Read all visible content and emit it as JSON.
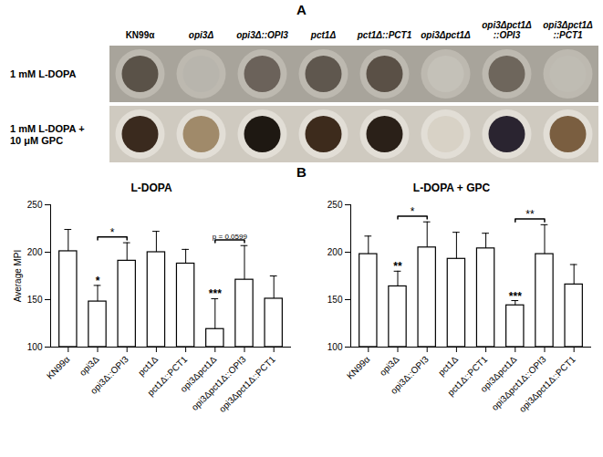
{
  "panel_a": {
    "label": "A",
    "strains": [
      "KN99α",
      "opi3Δ",
      "opi3Δ::OPI3",
      "pct1Δ",
      "pct1Δ::PCT1",
      "opi3Δpct1Δ",
      "opi3Δpct1Δ::OPI3",
      "opi3Δpct1Δ::PCT1"
    ],
    "rows": [
      {
        "label": "1 mM L-DOPA",
        "colors": [
          "#5a5248",
          "#b8b5ad",
          "#6b625a",
          "#5f574e",
          "#5a5046",
          "#c4c1b8",
          "#6e665c",
          "#bfbcb3"
        ]
      },
      {
        "label": "1 mM L-DOPA + 10 μM GPC",
        "colors": [
          "#3a2a1e",
          "#a08a6a",
          "#1e1812",
          "#3d2b1c",
          "#2a2018",
          "#d8d2c6",
          "#2a2430",
          "#7a5e40"
        ]
      }
    ]
  },
  "panel_b": {
    "label": "B"
  },
  "chart_data": [
    {
      "type": "bar",
      "title": "L-DOPA",
      "categories": [
        "KN99α",
        "opi3Δ",
        "opi3Δ::OPI3",
        "pct1Δ",
        "pct1Δ::PCT1",
        "opi3Δpct1Δ",
        "opi3Δpct1Δ::OPI3",
        "opi3Δpct1Δ::PCT1"
      ],
      "values": [
        201,
        148,
        191,
        200,
        188,
        119,
        171,
        151
      ],
      "errors": [
        23,
        17,
        19,
        22,
        15,
        32,
        36,
        24
      ],
      "color": "#ffffff",
      "ylabel": "Average MPI",
      "ylim": [
        100,
        250
      ],
      "yticks": [
        100,
        150,
        200,
        250
      ],
      "significance": [
        {
          "index": 1,
          "text": "*"
        },
        {
          "index": 5,
          "text": "***"
        }
      ],
      "brackets": [
        {
          "from": 1,
          "to": 2,
          "y": 216,
          "text": "*"
        },
        {
          "from": 5,
          "to": 6,
          "y": 213,
          "text": "p = 0.0599"
        }
      ]
    },
    {
      "type": "bar",
      "title": "L-DOPA + GPC",
      "categories": [
        "KN99α",
        "opi3Δ",
        "opi3Δ::OPI3",
        "pct1Δ",
        "pct1Δ::PCT1",
        "opi3Δpct1Δ",
        "opi3Δpct1Δ::OPI3",
        "opi3Δpct1Δ::PCT1"
      ],
      "values": [
        198,
        164,
        205,
        193,
        204,
        144,
        198,
        166
      ],
      "errors": [
        19,
        16,
        27,
        28,
        16,
        5,
        31,
        21
      ],
      "color": "#ffffff",
      "ylim": [
        100,
        250
      ],
      "yticks": [
        100,
        150,
        200,
        250
      ],
      "significance": [
        {
          "index": 1,
          "text": "**"
        },
        {
          "index": 5,
          "text": "***"
        }
      ],
      "brackets": [
        {
          "from": 1,
          "to": 2,
          "y": 238,
          "text": "*"
        },
        {
          "from": 5,
          "to": 6,
          "y": 235,
          "text": "**"
        }
      ]
    }
  ]
}
